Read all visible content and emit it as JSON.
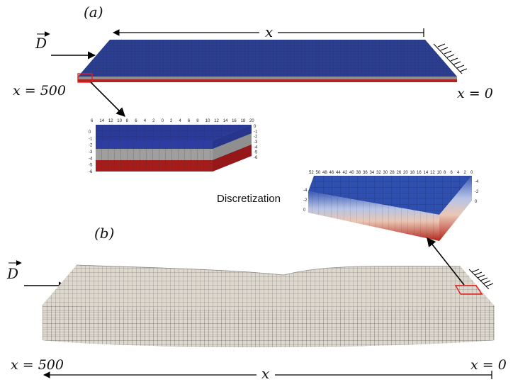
{
  "panel_a": {
    "label": "(a)",
    "force_label": "D",
    "axis_label": "x",
    "x_left": "x = 500",
    "x_right": "x = 0",
    "colors": {
      "top": "#2c3e8f",
      "mid": "#a9a9a9",
      "bottom": "#9a1b1e"
    }
  },
  "zoom_a": {
    "top_ticks": [
      "6",
      "14",
      "12",
      "10",
      "8",
      "6",
      "4",
      "2",
      "0",
      "2",
      "4",
      "6",
      "8",
      "10",
      "12",
      "14",
      "16",
      "18",
      "20"
    ],
    "left_ticks": [
      "0",
      "-1",
      "-2",
      "-3",
      "-4",
      "-5",
      "-6"
    ],
    "right_ticks": [
      "0",
      "-1",
      "-2",
      "-3",
      "-4",
      "-5",
      "-6"
    ]
  },
  "middle_label": "Discretization",
  "zoom_b": {
    "top_ticks": [
      "52",
      "50",
      "48",
      "46",
      "44",
      "42",
      "40",
      "38",
      "36",
      "34",
      "32",
      "30",
      "28",
      "26",
      "20",
      "18",
      "16",
      "14",
      "12",
      "10",
      "8",
      "6",
      "4",
      "2",
      "0"
    ],
    "left_ticks": [
      "-4",
      "-2",
      "0"
    ],
    "right_ticks": [
      "-4",
      "-2",
      "0"
    ]
  },
  "panel_b": {
    "label": "(b)",
    "force_label": "D",
    "axis_label": "x",
    "x_left": "x = 500",
    "x_right": "x = 0"
  }
}
